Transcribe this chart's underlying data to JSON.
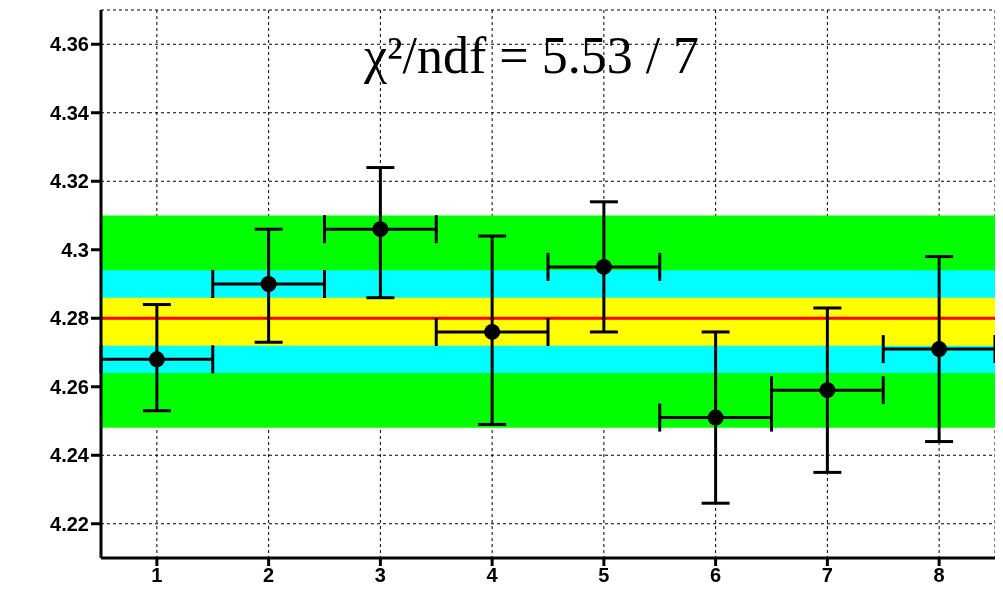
{
  "chart_data": {
    "type": "scatter",
    "annotations": [
      "χ²/ndf = 5.53 / 7"
    ],
    "x": [
      1,
      2,
      3,
      4,
      5,
      6,
      7,
      8
    ],
    "series": [
      {
        "color": "#000000",
        "values": [
          4.268,
          4.29,
          4.306,
          4.276,
          4.295,
          4.251,
          4.259,
          4.271
        ],
        "errors": [
          [
            4.253,
            4.284
          ],
          [
            4.273,
            4.306
          ],
          [
            4.286,
            4.324
          ],
          [
            4.249,
            4.304
          ],
          [
            4.276,
            4.314
          ],
          [
            4.226,
            4.276
          ],
          [
            4.235,
            4.283
          ],
          [
            4.244,
            4.298
          ]
        ],
        "xerrors": [
          0.5,
          0.5,
          0.5,
          0.5,
          0.5,
          0.5,
          0.5,
          0.5
        ]
      }
    ],
    "xlim": [
      0.5,
      8.5
    ],
    "xticks": [
      1,
      2,
      3,
      4,
      5,
      6,
      7,
      8
    ],
    "ylim": [
      4.21,
      4.37
    ],
    "yticks": [
      4.22,
      4.24,
      4.26,
      4.28,
      4.3,
      4.32,
      4.34,
      4.36
    ],
    "grid": true,
    "marker": "circle",
    "bands": [
      {
        "axis": "y",
        "from": 4.248,
        "to": 4.31,
        "color": "#00ff00"
      },
      {
        "axis": "y",
        "from": 4.264,
        "to": 4.294,
        "color": "#00ffff"
      },
      {
        "axis": "y",
        "from": 4.272,
        "to": 4.286,
        "color": "#ffff00"
      }
    ],
    "ref_lines": [
      {
        "axis": "y",
        "value": 4.28,
        "color": "#ff0000"
      }
    ]
  }
}
